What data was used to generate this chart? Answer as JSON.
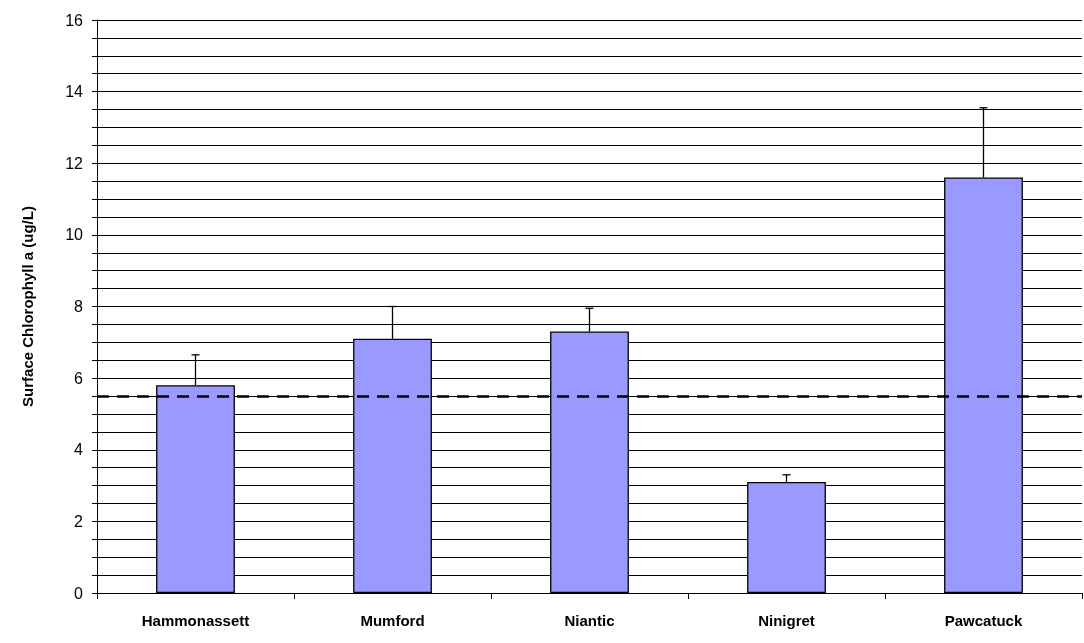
{
  "chart_data": {
    "type": "bar",
    "ylabel": "Surface Chlorophyll a (ug/L)",
    "categories": [
      "Hammonassett",
      "Mumford",
      "Niantic",
      "Ninigret",
      "Pawcatuck"
    ],
    "values": [
      5.8,
      7.1,
      7.3,
      3.1,
      11.6
    ],
    "color": "#9999ff",
    "errors": [
      [
        5.8,
        6.65
      ],
      [
        7.1,
        8.0
      ],
      [
        7.3,
        7.95
      ],
      [
        3.1,
        3.3
      ],
      [
        11.6,
        13.55
      ]
    ],
    "ylim": [
      0,
      16
    ],
    "yticks": [
      0,
      {
        "value": 0.5,
        "label": null
      },
      {
        "value": 1,
        "label": null
      },
      {
        "value": 1.5,
        "label": null
      },
      2,
      {
        "value": 2.5,
        "label": null
      },
      {
        "value": 3,
        "label": null
      },
      {
        "value": 3.5,
        "label": null
      },
      4,
      {
        "value": 4.5,
        "label": null
      },
      {
        "value": 5,
        "label": null
      },
      {
        "value": 5.5,
        "label": null
      },
      6,
      {
        "value": 6.5,
        "label": null
      },
      {
        "value": 7,
        "label": null
      },
      {
        "value": 7.5,
        "label": null
      },
      8,
      {
        "value": 8.5,
        "label": null
      },
      {
        "value": 9,
        "label": null
      },
      {
        "value": 9.5,
        "label": null
      },
      10,
      {
        "value": 10.5,
        "label": null
      },
      {
        "value": 11,
        "label": null
      },
      {
        "value": 11.5,
        "label": null
      },
      12,
      {
        "value": 12.5,
        "label": null
      },
      {
        "value": 13,
        "label": null
      },
      {
        "value": 13.5,
        "label": null
      },
      14,
      {
        "value": 14.5,
        "label": null
      },
      {
        "value": 15,
        "label": null
      },
      {
        "value": 15.5,
        "label": null
      },
      16
    ],
    "grid": "y",
    "ref_lines": [
      {
        "axis": "y",
        "value": 5.5,
        "color": "#000000",
        "line_style": "dashed"
      }
    ]
  }
}
